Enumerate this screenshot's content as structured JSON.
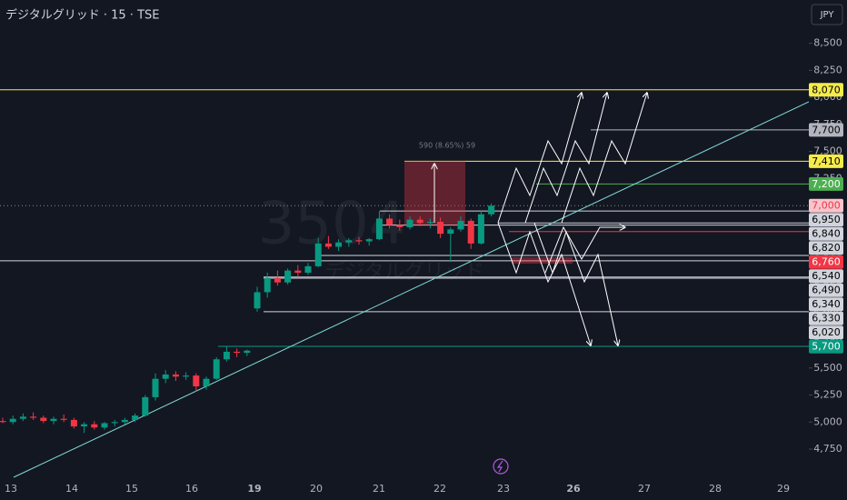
{
  "chart_data": {
    "type": "candlestick",
    "title": "デジタルグリッド · 15 · TSE",
    "currency": "JPY",
    "watermark": {
      "symbol": "3504",
      "name": "デジタルグリッド"
    },
    "annotation": "590 (8.65%) 59",
    "categories": [
      "13",
      "14",
      "15",
      "16",
      "19",
      "20",
      "21",
      "22",
      "23",
      "26",
      "27",
      "28",
      "29"
    ],
    "up_color": "#089981",
    "down_color": "#f23645",
    "ohlc": [
      [
        5010,
        5040,
        4990,
        5000
      ],
      [
        5000,
        5060,
        4980,
        5030
      ],
      [
        5030,
        5080,
        5010,
        5050
      ],
      [
        5050,
        5090,
        5020,
        5040
      ],
      [
        5040,
        5060,
        4990,
        5010
      ],
      [
        5010,
        5050,
        4980,
        5030
      ],
      [
        5030,
        5070,
        5000,
        5020
      ],
      [
        5020,
        5040,
        4940,
        4960
      ],
      [
        4960,
        5000,
        4900,
        4980
      ],
      [
        4980,
        5010,
        4930,
        4950
      ],
      [
        4950,
        5000,
        4930,
        4990
      ],
      [
        4990,
        5020,
        4960,
        5000
      ],
      [
        5000,
        5040,
        4980,
        5020
      ],
      [
        5020,
        5080,
        5000,
        5060
      ],
      [
        5060,
        5250,
        5050,
        5230
      ],
      [
        5230,
        5450,
        5200,
        5400
      ],
      [
        5400,
        5480,
        5360,
        5440
      ],
      [
        5440,
        5470,
        5380,
        5420
      ],
      [
        5420,
        5460,
        5390,
        5430
      ],
      [
        5430,
        5450,
        5280,
        5330
      ],
      [
        5330,
        5420,
        5300,
        5400
      ],
      [
        5400,
        5600,
        5390,
        5580
      ],
      [
        5580,
        5700,
        5560,
        5650
      ],
      [
        5650,
        5680,
        5600,
        5640
      ],
      [
        5640,
        5670,
        5610,
        5660
      ],
      [
        6050,
        6250,
        6020,
        6200
      ],
      [
        6200,
        6380,
        6150,
        6330
      ],
      [
        6330,
        6400,
        6260,
        6290
      ],
      [
        6290,
        6420,
        6270,
        6400
      ],
      [
        6400,
        6450,
        6340,
        6380
      ],
      [
        6380,
        6470,
        6360,
        6440
      ],
      [
        6440,
        6700,
        6430,
        6650
      ],
      [
        6650,
        6720,
        6600,
        6620
      ],
      [
        6620,
        6690,
        6580,
        6660
      ],
      [
        6660,
        6700,
        6620,
        6680
      ],
      [
        6680,
        6710,
        6640,
        6670
      ],
      [
        6670,
        6700,
        6630,
        6690
      ],
      [
        6690,
        6950,
        6680,
        6880
      ],
      [
        6880,
        6920,
        6790,
        6820
      ],
      [
        6820,
        6870,
        6770,
        6800
      ],
      [
        6800,
        6900,
        6780,
        6870
      ],
      [
        6870,
        6900,
        6810,
        6840
      ],
      [
        6840,
        6880,
        6790,
        6850
      ],
      [
        6850,
        6890,
        6700,
        6740
      ],
      [
        6740,
        6800,
        6480,
        6780
      ],
      [
        6780,
        6900,
        6760,
        6860
      ],
      [
        6860,
        6880,
        6600,
        6650
      ],
      [
        6650,
        6950,
        6640,
        6920
      ],
      [
        6920,
        7020,
        6900,
        7000
      ]
    ],
    "ylim": [
      4490,
      8900
    ],
    "yticks": [
      {
        "value": 4750,
        "label": "4,750"
      },
      {
        "value": 5000,
        "label": "5,000"
      },
      {
        "value": 5250,
        "label": "5,250"
      },
      {
        "value": 5500,
        "label": "5,500"
      },
      {
        "value": 5750,
        "label": "5,750"
      },
      {
        "value": 6000,
        "label": "6,000"
      },
      {
        "value": 6250,
        "label": "6,250"
      },
      {
        "value": 6500,
        "label": "6,500"
      },
      {
        "value": 6750,
        "label": "6,750"
      },
      {
        "value": 7000,
        "label": "7,000"
      },
      {
        "value": 7250,
        "label": "7,250"
      },
      {
        "value": 7500,
        "label": "7,500"
      },
      {
        "value": 7750,
        "label": "7,750"
      },
      {
        "value": 8000,
        "label": "8,000"
      },
      {
        "value": 8250,
        "label": "8,250"
      },
      {
        "value": 8500,
        "label": "8,500"
      }
    ],
    "levels": [
      {
        "value": 8070,
        "label": "8,070",
        "color": "#f5eb4a",
        "text_color": "#000000"
      },
      {
        "value": 7700,
        "label": "7,700",
        "color": "#b2b5be",
        "text_color": "#000000"
      },
      {
        "value": 7410,
        "label": "7,410",
        "color": "#f5eb4a",
        "text_color": "#000000"
      },
      {
        "value": 7200,
        "label": "7,200",
        "color": "#4caf50",
        "text_color": "#ffffff"
      },
      {
        "value": 7000,
        "label": "7,000",
        "color": "#f7c5cc",
        "text_color": "#f23645",
        "style": "dotted"
      },
      {
        "value": 6950,
        "label": "6,950",
        "color": "#d1d4dc",
        "text_color": "#000000"
      },
      {
        "value": 6840,
        "label": "6,840",
        "color": "#d1d4dc",
        "text_color": "#000000"
      },
      {
        "value": 6820,
        "label": "6,820",
        "color": "#d1d4dc",
        "text_color": "#000000"
      },
      {
        "value": 6760,
        "label": "6,760",
        "color": "#f23645",
        "text_color": "#ffffff"
      },
      {
        "value": 6540,
        "label": "6,540",
        "color": "#d1d4dc",
        "text_color": "#000000"
      },
      {
        "value": 6490,
        "label": "6,490",
        "color": "#d1d4dc",
        "text_color": "#000000"
      },
      {
        "value": 6340,
        "label": "6,340",
        "color": "#d1d4dc",
        "text_color": "#000000"
      },
      {
        "value": 6330,
        "label": "6,330",
        "color": "#d1d4dc",
        "text_color": "#000000"
      },
      {
        "value": 6020,
        "label": "6,020",
        "color": "#d1d4dc",
        "text_color": "#000000"
      },
      {
        "value": 5700,
        "label": "5,700",
        "color": "#089981",
        "text_color": "#ffffff"
      }
    ]
  }
}
